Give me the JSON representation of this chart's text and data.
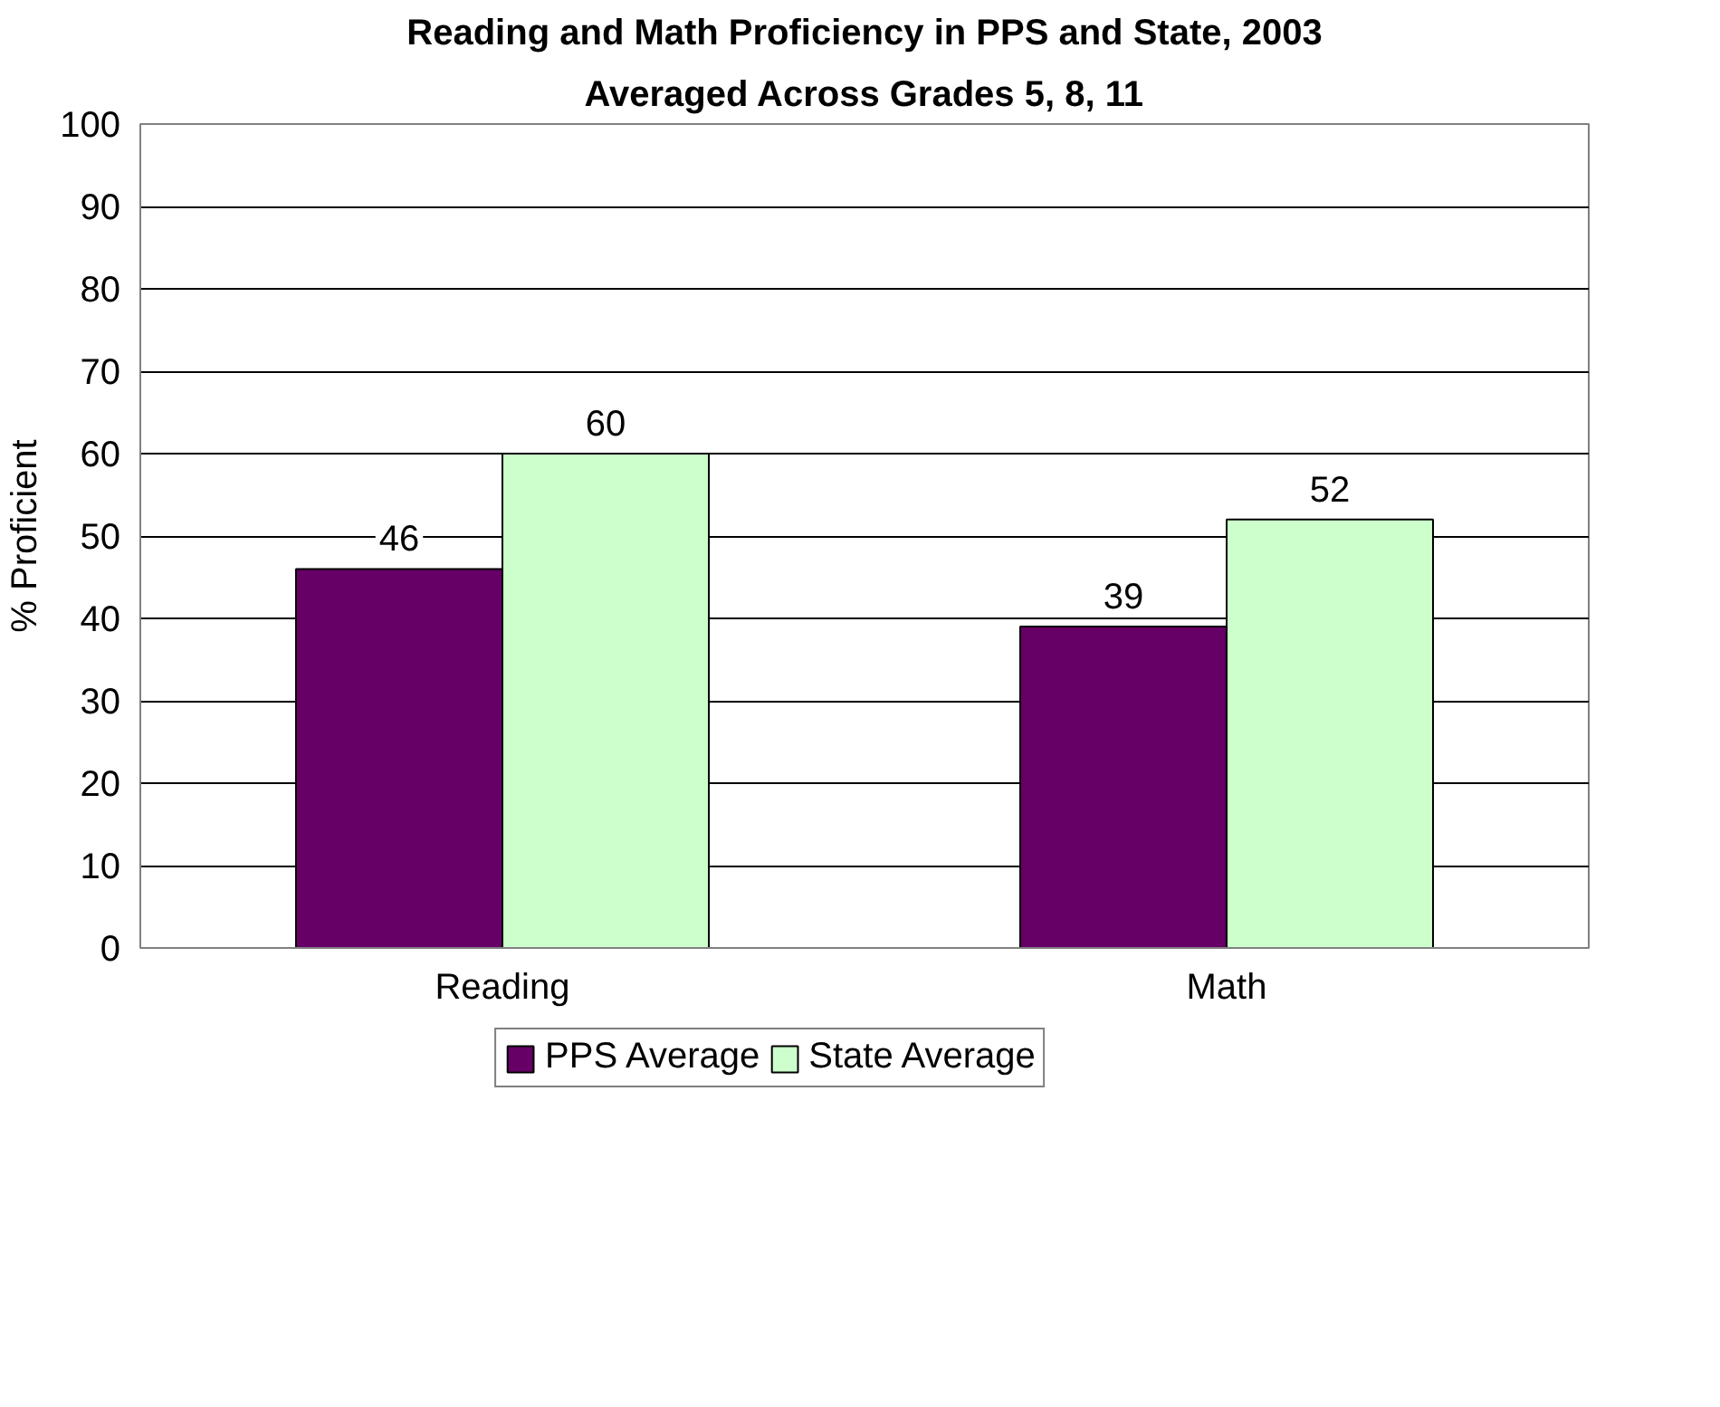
{
  "chart_data": {
    "type": "bar",
    "title": "Reading and Math Proficiency in PPS and State, 2003",
    "subtitle": "Averaged Across Grades 5, 8, 11",
    "ylabel": "% Proficient",
    "categories": [
      "Reading",
      "Math"
    ],
    "series": [
      {
        "name": "PPS Average",
        "color": "#660066",
        "values": [
          46,
          39
        ]
      },
      {
        "name": "State Average",
        "color": "#ccffcc",
        "values": [
          60,
          52
        ]
      }
    ],
    "ylim": [
      0,
      100
    ],
    "yticks": [
      0,
      10,
      20,
      30,
      40,
      50,
      60,
      70,
      80,
      90,
      100
    ],
    "grid": "y",
    "legend": "bottom",
    "data_labels": true
  }
}
